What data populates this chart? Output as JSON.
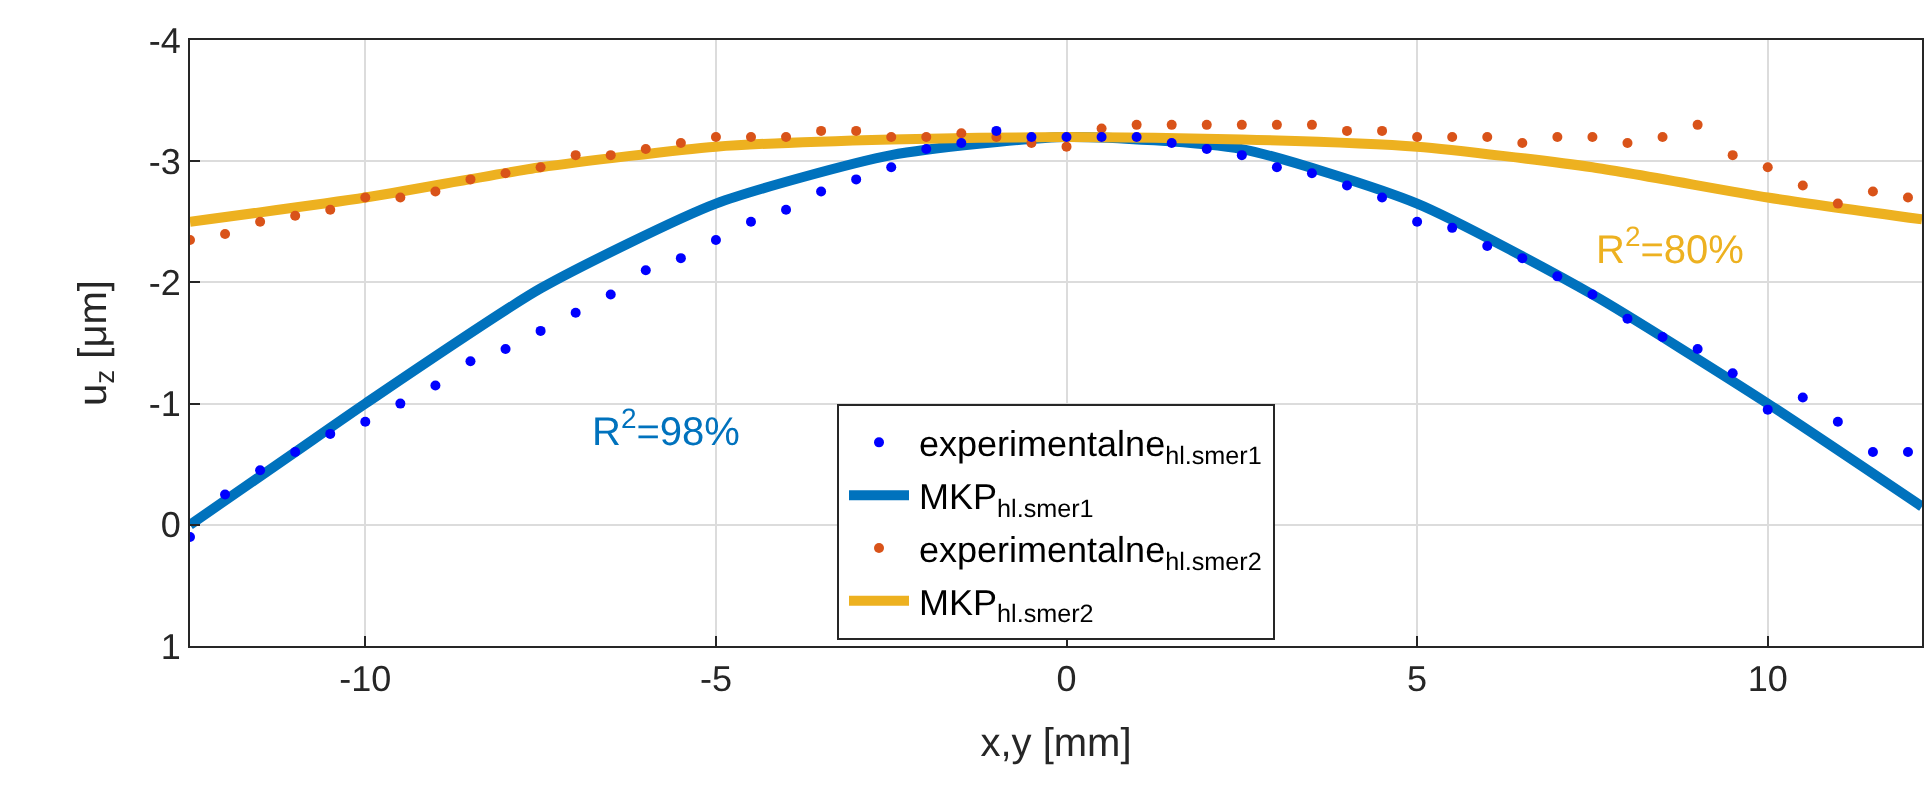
{
  "chart_data": {
    "type": "scatter",
    "xlabel": "x,y [mm]",
    "ylabel": "u$_{z}$ [μm]",
    "xlim": [
      -12.5,
      12.2
    ],
    "xticks": [
      -10,
      -5,
      0,
      5,
      10
    ],
    "ylim": [
      1,
      -4
    ],
    "yticks": [
      -4,
      -3,
      -2,
      -1,
      0,
      1
    ],
    "grid": true,
    "legend": "bottom",
    "marker": "circle",
    "annotations": [
      "R$^{2}$=98%",
      "R$^{2}$=80%"
    ],
    "series": [
      {
        "name": "experimentalne$_{hl.smer1}$",
        "color": "#0000ff",
        "x": [
          -12.5,
          -12,
          -11.5,
          -11,
          -10.5,
          -10,
          -9.5,
          -9,
          -8.5,
          -8,
          -7.5,
          -7,
          -6.5,
          -6,
          -5.5,
          -5,
          -4.5,
          -4,
          -3.5,
          -3,
          -2.5,
          -2,
          -1.5,
          -1,
          -0.5,
          0,
          0.5,
          1,
          1.5,
          2,
          2.5,
          3,
          3.5,
          4,
          4.5,
          5,
          5.5,
          6,
          6.5,
          7,
          7.5,
          8,
          8.5,
          9,
          9.5,
          10,
          10.5,
          11,
          11.5,
          12
        ],
        "values": [
          0.1,
          -0.25,
          -0.45,
          -0.6,
          -0.75,
          -0.85,
          -1.0,
          -1.15,
          -1.35,
          -1.45,
          -1.6,
          -1.75,
          -1.9,
          -2.1,
          -2.2,
          -2.35,
          -2.5,
          -2.6,
          -2.75,
          -2.85,
          -2.95,
          -3.1,
          -3.15,
          -3.25,
          -3.2,
          -3.2,
          -3.2,
          -3.2,
          -3.15,
          -3.1,
          -3.05,
          -2.95,
          -2.9,
          -2.8,
          -2.7,
          -2.5,
          -2.45,
          -2.3,
          -2.2,
          -2.05,
          -1.9,
          -1.7,
          -1.55,
          -1.45,
          -1.25,
          -0.95,
          -1.05,
          -0.85,
          -0.6,
          -0.6
        ]
      },
      {
        "name": "MKP$_{hl.smer1}$",
        "type": "line",
        "marker": "none",
        "color": "#0072bd",
        "x": [
          -12.5,
          -11,
          -10,
          -7.5,
          -5,
          -2.5,
          0,
          2.5,
          5,
          7.5,
          10,
          12.2
        ],
        "values": [
          0.0,
          -0.6,
          -1.0,
          -1.95,
          -2.65,
          -3.05,
          -3.2,
          -3.1,
          -2.65,
          -1.9,
          -1.0,
          -0.15
        ]
      },
      {
        "name": "experimentalne$_{hl.smer2}$",
        "color": "#d95319",
        "x": [
          -12.5,
          -12,
          -11.5,
          -11,
          -10.5,
          -10,
          -9.5,
          -9,
          -8.5,
          -8,
          -7.5,
          -7,
          -6.5,
          -6,
          -5.5,
          -5,
          -4.5,
          -4,
          -3.5,
          -3,
          -2.5,
          -2,
          -1.5,
          -1,
          -0.5,
          0,
          0.5,
          1,
          1.5,
          2,
          2.5,
          3,
          3.5,
          4,
          4.5,
          5,
          5.5,
          6,
          6.5,
          7,
          7.5,
          8,
          8.5,
          9,
          9.5,
          10,
          10.5,
          11,
          11.5,
          12
        ],
        "values": [
          -2.35,
          -2.4,
          -2.5,
          -2.55,
          -2.6,
          -2.7,
          -2.7,
          -2.75,
          -2.85,
          -2.9,
          -2.95,
          -3.05,
          -3.05,
          -3.1,
          -3.15,
          -3.2,
          -3.2,
          -3.2,
          -3.25,
          -3.25,
          -3.2,
          -3.2,
          -3.23,
          -3.2,
          -3.15,
          -3.12,
          -3.27,
          -3.3,
          -3.3,
          -3.3,
          -3.3,
          -3.3,
          -3.3,
          -3.25,
          -3.25,
          -3.2,
          -3.2,
          -3.2,
          -3.15,
          -3.2,
          -3.2,
          -3.15,
          -3.2,
          -3.3,
          -3.05,
          -2.95,
          -2.8,
          -2.65,
          -2.75,
          -2.7
        ]
      },
      {
        "name": "MKP$_{hl.smer2}$",
        "type": "line",
        "marker": "none",
        "color": "#edb120",
        "x": [
          -12.5,
          -10,
          -7.5,
          -5,
          -2.5,
          0,
          2.5,
          5,
          7.5,
          10,
          12.2
        ],
        "values": [
          -2.5,
          -2.7,
          -2.95,
          -3.12,
          -3.18,
          -3.2,
          -3.18,
          -3.12,
          -2.95,
          -2.7,
          -2.52
        ]
      }
    ]
  }
}
